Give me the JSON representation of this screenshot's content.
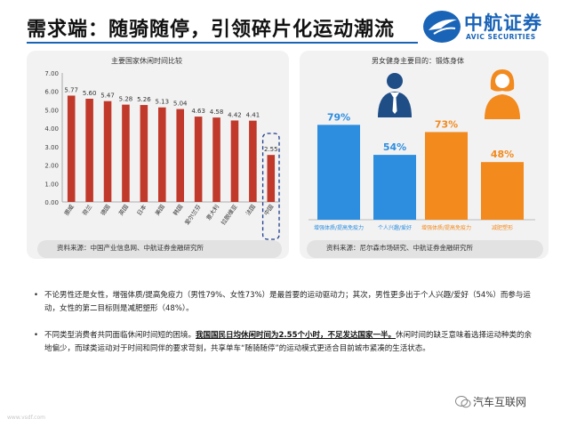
{
  "header": {
    "title": "需求端：随骑随停，引领碎片化运动潮流",
    "logo_name": "中航证券",
    "logo_en": "AVIC SECURITIES"
  },
  "chart_data": [
    {
      "type": "bar",
      "title": "主要国家休闲时间比较",
      "categories": [
        "挪威",
        "荷兰",
        "德国",
        "英国",
        "日本",
        "美国",
        "韩国",
        "爱尔兰芬",
        "意大利",
        "拉脱维亚",
        "法国",
        "中国"
      ],
      "values": [
        5.77,
        5.6,
        5.47,
        5.28,
        5.26,
        5.13,
        5.04,
        4.63,
        4.58,
        4.42,
        4.41,
        2.55
      ],
      "value_labels": [
        "5.77",
        "5.60",
        "5.47",
        "5.28",
        "5.26",
        "5.13",
        "5.04",
        "4.63",
        "4.58",
        "4.42",
        "4.41",
        "2.55"
      ],
      "ylim": [
        0,
        7
      ],
      "yticks": [
        "0.00",
        "1.00",
        "2.00",
        "3.00",
        "4.00",
        "5.00",
        "6.00",
        "7.00"
      ],
      "grid": false,
      "bar_color": "#c0392b",
      "highlight_category": "中国",
      "source": "资料来源：中国产业信息网、中航证券金融研究所"
    },
    {
      "type": "bar",
      "title": "男女健身主要目的：锻炼身体",
      "categories": [
        "增强体质/提高免疫力",
        "个人兴趣/爱好",
        "增强体质/提高免疫力",
        "减肥塑形"
      ],
      "values": [
        79,
        54,
        73,
        48
      ],
      "value_labels": [
        "79%",
        "54%",
        "73%",
        "48%"
      ],
      "ylim": [
        0,
        100
      ],
      "colors": [
        "#2d8ee0",
        "#2d8ee0",
        "#f28a1e",
        "#f28a1e"
      ],
      "source": "资料来源：尼尔森市场研究、中航证券金融研究所",
      "icons": [
        "male-person-icon",
        "female-person-icon"
      ]
    }
  ],
  "bullets": [
    {
      "text": "不论男性还是女性，增强体质/提高免疫力（男性79%、女性73%）是最首要的运动驱动力；其次，男性更多出于个人兴趣/爱好（54%）而参与运动，女性的第二目标则是减肥塑形（48%）。"
    },
    {
      "pre": "不同类型消费者共同面临休闲时间短的困境。",
      "emph": "我国国民日均休闲时间为2.55个小时，不足发达国家一半。",
      "post": "休闲时间的缺乏意味着选择运动种类的余地偏少，而球类运动对于时间和同伴的要求苛刻，共享单车“随骑随停”的运动模式更适合目前城市紧凑的生活状态。"
    }
  ],
  "bullet_dot": "•",
  "footer": {
    "brand": "汽车互联网",
    "watermark": "www.vsdf.com"
  }
}
